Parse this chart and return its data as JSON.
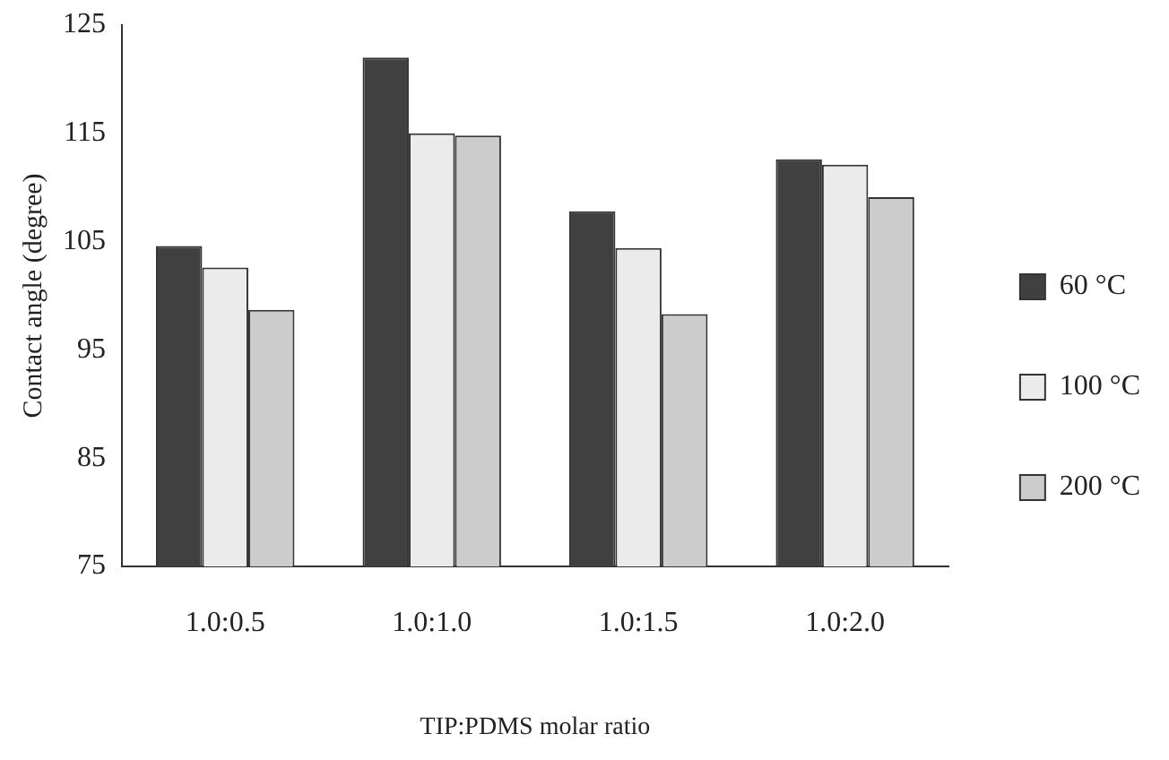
{
  "chart_data": {
    "type": "bar",
    "xlabel": "TIP:PDMS molar ratio",
    "ylabel": "Contact angle (degree)",
    "categories": [
      "1.0:0.5",
      "1.0:1.0",
      "1.0:1.5",
      "1.0:2.0"
    ],
    "series": [
      {
        "name": "60 °C",
        "color": "#404040",
        "values": [
          104.6,
          122.0,
          107.8,
          112.6
        ]
      },
      {
        "name": "100 °C",
        "color": "#ebebeb",
        "values": [
          102.6,
          115.0,
          104.4,
          112.1
        ]
      },
      {
        "name": "200 °C",
        "color": "#cccccc",
        "values": [
          98.7,
          114.8,
          98.3,
          109.1
        ]
      }
    ],
    "ylim": [
      75,
      125
    ],
    "yticks": [
      75,
      85,
      95,
      105,
      115,
      125
    ],
    "grid": false,
    "legend": "right"
  }
}
